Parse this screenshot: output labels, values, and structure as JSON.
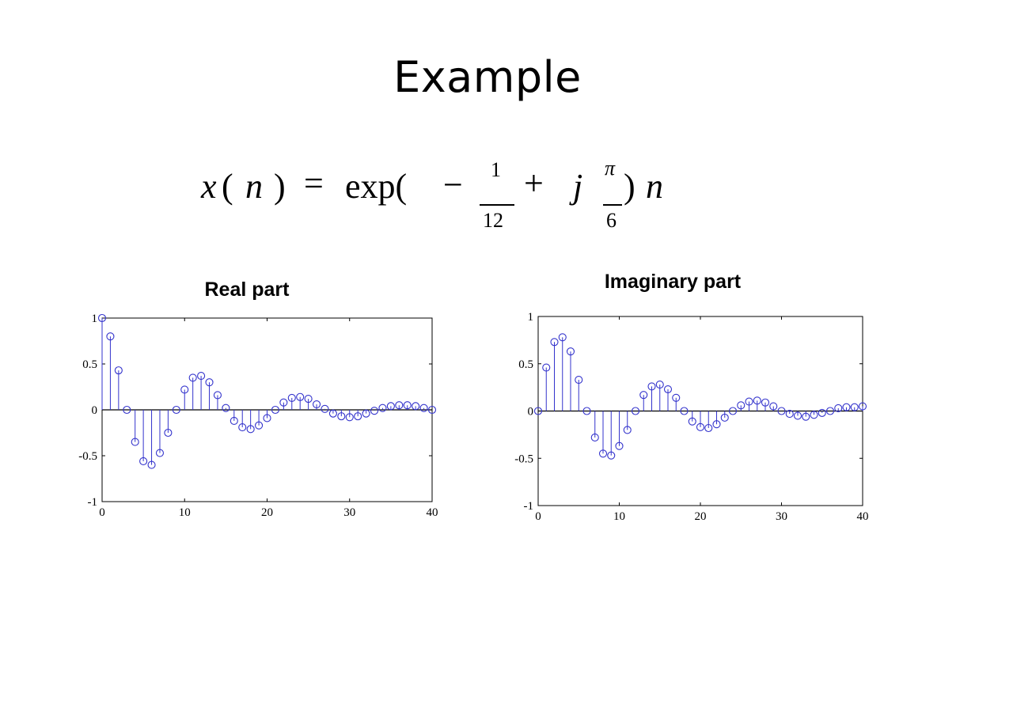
{
  "slide": {
    "title": "Example"
  },
  "formula": {
    "lhs_x": "x",
    "lparen": "(",
    "lhs_n": "n",
    "rparen": ")",
    "equals": "=",
    "exp": "exp(",
    "minus": "−",
    "frac1_num": "1",
    "frac1_den": "12",
    "plus": "+",
    "j": "j",
    "frac2_num": "π",
    "frac2_den": "6",
    "close_paren": ")",
    "n": "n"
  },
  "chart_data": [
    {
      "type": "stem",
      "title": "Real part",
      "xlabel": "",
      "ylabel": "",
      "xlim": [
        0,
        40
      ],
      "ylim": [
        -1,
        1
      ],
      "xticks": [
        0,
        10,
        20,
        30,
        40
      ],
      "yticks": [
        -1,
        -0.5,
        0,
        0.5,
        1
      ],
      "ytick_labels": [
        "-1",
        "-0.5",
        "0",
        "0.5",
        "1"
      ],
      "grid": false,
      "color": "#3333cc",
      "x": [
        0,
        1,
        2,
        3,
        4,
        5,
        6,
        7,
        8,
        9,
        10,
        11,
        12,
        13,
        14,
        15,
        16,
        17,
        18,
        19,
        20,
        21,
        22,
        23,
        24,
        25,
        26,
        27,
        28,
        29,
        30,
        31,
        32,
        33,
        34,
        35,
        36,
        37,
        38,
        39,
        40
      ],
      "values": [
        1.0,
        0.8,
        0.43,
        0.0,
        -0.35,
        -0.56,
        -0.6,
        -0.47,
        -0.25,
        0.0,
        0.22,
        0.35,
        0.37,
        0.3,
        0.16,
        0.02,
        -0.12,
        -0.19,
        -0.21,
        -0.17,
        -0.09,
        0.0,
        0.08,
        0.13,
        0.14,
        0.12,
        0.06,
        0.01,
        -0.04,
        -0.07,
        -0.08,
        -0.07,
        -0.04,
        -0.01,
        0.02,
        0.04,
        0.05,
        0.05,
        0.04,
        0.02,
        0.0
      ]
    },
    {
      "type": "stem",
      "title": "Imaginary part",
      "xlabel": "",
      "ylabel": "",
      "xlim": [
        0,
        40
      ],
      "ylim": [
        -1,
        1
      ],
      "xticks": [
        0,
        10,
        20,
        30,
        40
      ],
      "yticks": [
        -1,
        -0.5,
        0,
        0.5,
        1
      ],
      "ytick_labels": [
        "-1",
        "-0.5",
        "0",
        "0.5",
        "1"
      ],
      "grid": false,
      "color": "#3333cc",
      "x": [
        0,
        1,
        2,
        3,
        4,
        5,
        6,
        7,
        8,
        9,
        10,
        11,
        12,
        13,
        14,
        15,
        16,
        17,
        18,
        19,
        20,
        21,
        22,
        23,
        24,
        25,
        26,
        27,
        28,
        29,
        30,
        31,
        32,
        33,
        34,
        35,
        36,
        37,
        38,
        39,
        40
      ],
      "values": [
        0.0,
        0.46,
        0.73,
        0.78,
        0.63,
        0.33,
        0.0,
        -0.28,
        -0.45,
        -0.47,
        -0.37,
        -0.2,
        0.0,
        0.17,
        0.26,
        0.28,
        0.23,
        0.14,
        0.0,
        -0.11,
        -0.17,
        -0.18,
        -0.14,
        -0.07,
        0.0,
        0.06,
        0.1,
        0.11,
        0.09,
        0.05,
        0.0,
        -0.03,
        -0.05,
        -0.06,
        -0.04,
        -0.02,
        0.0,
        0.03,
        0.04,
        0.04,
        0.05
      ]
    }
  ]
}
